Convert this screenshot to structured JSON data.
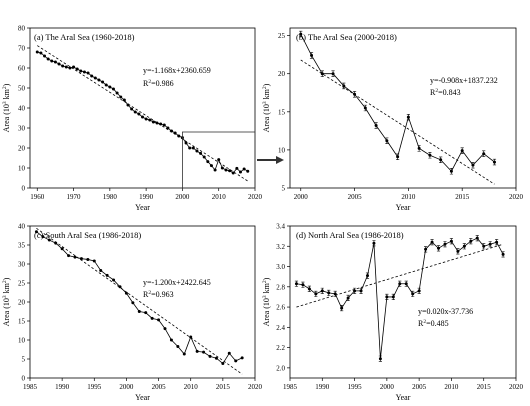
{
  "chart_data": [
    {
      "type": "line",
      "title": "(a) The Aral Sea (1960-2018)",
      "xlabel": "Year",
      "ylabel": "Area (10",
      "ylabel_sup": "3",
      "ylabel_tail": " km",
      "ylabel_sup2": "2",
      "ylabel_end": ")",
      "xlim": [
        1958,
        2020
      ],
      "ylim": [
        0,
        80
      ],
      "xticks": [
        1960,
        1970,
        1980,
        1990,
        2000,
        2010,
        2020
      ],
      "yticks": [
        0,
        10,
        20,
        30,
        40,
        50,
        60,
        70,
        80
      ],
      "equation": "y=-1.168x+2360.659",
      "r2_label": "R",
      "r2_sup": "2",
      "r2_value": "=0.986",
      "trend": {
        "x": [
          1960,
          2018
        ],
        "y": [
          71.2,
          3.5
        ]
      },
      "highlight_box": {
        "x": [
          2000,
          2020
        ],
        "y": [
          0,
          28
        ]
      },
      "x": [
        1960,
        1961,
        1962,
        1963,
        1964,
        1965,
        1966,
        1967,
        1968,
        1969,
        1970,
        1971,
        1972,
        1973,
        1974,
        1975,
        1976,
        1977,
        1978,
        1979,
        1980,
        1981,
        1982,
        1983,
        1984,
        1985,
        1986,
        1987,
        1988,
        1989,
        1990,
        1991,
        1992,
        1993,
        1994,
        1995,
        1996,
        1997,
        1998,
        1999,
        2000,
        2001,
        2002,
        2003,
        2004,
        2005,
        2006,
        2007,
        2008,
        2009,
        2010,
        2011,
        2012,
        2013,
        2014,
        2015,
        2016,
        2017,
        2018
      ],
      "y": [
        68,
        67.5,
        66,
        64.5,
        63.5,
        63,
        62,
        61,
        60.5,
        60,
        60.5,
        59.5,
        58.5,
        58,
        57.5,
        56,
        55,
        54,
        53,
        51.5,
        50.5,
        49.5,
        47.5,
        45.5,
        44,
        41.5,
        39.5,
        38,
        37,
        35.5,
        34.5,
        34,
        33,
        32.5,
        32,
        31.5,
        30,
        28.5,
        27.5,
        26,
        25.2,
        22.5,
        20,
        20,
        18.5,
        17.3,
        15.5,
        13.2,
        11.2,
        9,
        14.2,
        10,
        9,
        8.6,
        7.5,
        9.8,
        8,
        9.5,
        8.4
      ]
    },
    {
      "type": "line",
      "title": "(b) The Aral Sea (2000-2018)",
      "xlabel": "Year",
      "ylabel": "Area (10",
      "ylabel_sup": "3",
      "ylabel_tail": " km",
      "ylabel_sup2": "2",
      "ylabel_end": ")",
      "xlim": [
        1999,
        2020
      ],
      "ylim": [
        5,
        26
      ],
      "xticks": [
        2000,
        2005,
        2010,
        2015,
        2020
      ],
      "yticks": [
        5,
        10,
        15,
        20,
        25
      ],
      "equation": "y=-0.908x+1837.232",
      "r2_label": "R",
      "r2_sup": "2",
      "r2_value": "=0.843",
      "trend": {
        "x": [
          2000,
          2018
        ],
        "y": [
          21.8,
          5.5
        ]
      },
      "x": [
        2000,
        2001,
        2002,
        2003,
        2004,
        2005,
        2006,
        2007,
        2008,
        2009,
        2010,
        2011,
        2012,
        2013,
        2014,
        2015,
        2016,
        2017,
        2018
      ],
      "y": [
        25.2,
        22.4,
        20,
        20,
        18.4,
        17.3,
        15.5,
        13.2,
        11.2,
        9.1,
        14.3,
        10.2,
        9.3,
        8.7,
        7.2,
        9.9,
        8,
        9.5,
        8.4
      ]
    },
    {
      "type": "line",
      "title": "(c) South Aral Sea (1986-2018)",
      "xlabel": "Year",
      "ylabel": "Area (10",
      "ylabel_sup": "3",
      "ylabel_tail": " km",
      "ylabel_sup2": "2",
      "ylabel_end": ")",
      "xlim": [
        1985,
        2020
      ],
      "ylim": [
        0,
        40
      ],
      "xticks": [
        1985,
        1990,
        1995,
        2000,
        2005,
        2010,
        2015,
        2020
      ],
      "yticks": [
        0,
        5,
        10,
        15,
        20,
        25,
        30,
        35,
        40
      ],
      "equation": "y=-1.200x+2422.645",
      "r2_label": "R",
      "r2_sup": "2",
      "r2_value": "=0.963",
      "trend": {
        "x": [
          1986,
          2018
        ],
        "y": [
          39.4,
          1
        ]
      },
      "x": [
        1986,
        1987,
        1988,
        1989,
        1990,
        1991,
        1992,
        1993,
        1994,
        1995,
        1996,
        1997,
        1998,
        1999,
        2000,
        2001,
        2002,
        2003,
        2004,
        2005,
        2006,
        2007,
        2008,
        2009,
        2010,
        2011,
        2012,
        2013,
        2014,
        2015,
        2016,
        2017,
        2018
      ],
      "y": [
        38.5,
        37.2,
        36.3,
        35.5,
        34,
        32.2,
        31.8,
        31.4,
        31.2,
        30.8,
        28.3,
        27,
        25.8,
        24,
        22.3,
        19.8,
        17.5,
        17.2,
        15.7,
        15.3,
        13,
        10,
        8.3,
        6.3,
        10.8,
        7,
        6.8,
        5.7,
        5.2,
        3.8,
        6.5,
        4.5,
        5.3
      ]
    },
    {
      "type": "line",
      "title": "(d) North Aral Sea (1986-2018)",
      "xlabel": "Year",
      "ylabel": "Area (10",
      "ylabel_sup": "3",
      "ylabel_tail": " km",
      "ylabel_sup2": "2",
      "ylabel_end": ")",
      "xlim": [
        1985,
        2020
      ],
      "ylim": [
        1.9,
        3.4
      ],
      "xticks": [
        1985,
        1990,
        1995,
        2000,
        2005,
        2010,
        2015,
        2020
      ],
      "yticks": [
        2.0,
        2.2,
        2.4,
        2.6,
        2.8,
        3.0,
        3.2,
        3.4
      ],
      "ytick_labels": [
        "2.0",
        "2.2",
        "2.4",
        "2.6",
        "2.8",
        "3.0",
        "3.2",
        "3.4"
      ],
      "equation": "y=0.020x-37.736",
      "r2_label": "R",
      "r2_sup": "2",
      "r2_value": "=0.485",
      "trend": {
        "x": [
          1986,
          2018
        ],
        "y": [
          2.6,
          3.22
        ]
      },
      "x": [
        1986,
        1987,
        1988,
        1989,
        1990,
        1991,
        1992,
        1993,
        1994,
        1995,
        1996,
        1997,
        1998,
        1999,
        2000,
        2001,
        2002,
        2003,
        2004,
        2005,
        2006,
        2007,
        2008,
        2009,
        2010,
        2011,
        2012,
        2013,
        2014,
        2015,
        2016,
        2017,
        2018
      ],
      "y": [
        2.83,
        2.82,
        2.78,
        2.73,
        2.76,
        2.74,
        2.73,
        2.59,
        2.69,
        2.76,
        2.76,
        2.91,
        3.23,
        2.09,
        2.7,
        2.7,
        2.83,
        2.83,
        2.73,
        2.76,
        3.17,
        3.24,
        3.18,
        3.22,
        3.25,
        3.15,
        3.2,
        3.25,
        3.28,
        3.2,
        3.22,
        3.24,
        3.12
      ]
    }
  ]
}
